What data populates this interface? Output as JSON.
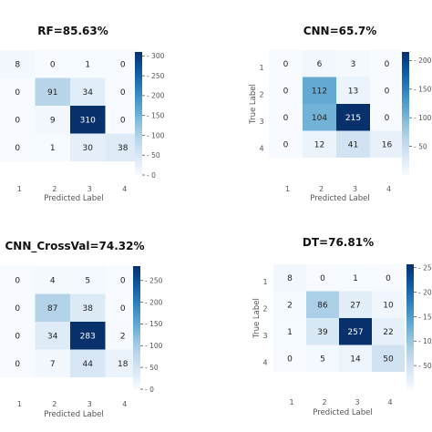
{
  "chart_data": [
    {
      "type": "heatmap",
      "title": "RF=85.63%",
      "xlabel": "Predicted Label",
      "ylabel": "",
      "x_ticks": [
        "1",
        "2",
        "3",
        "4"
      ],
      "y_ticks": [],
      "matrix": [
        [
          8,
          0,
          1,
          0
        ],
        [
          0,
          91,
          34,
          0
        ],
        [
          0,
          9,
          310,
          0
        ],
        [
          0,
          1,
          30,
          38
        ]
      ],
      "colormap": "Blues",
      "vmax": 310,
      "colorbar_ticks": [
        "300",
        "250",
        "200",
        "150",
        "100",
        "50",
        "0"
      ]
    },
    {
      "type": "heatmap",
      "title": "CNN=65.7%",
      "xlabel": "Predicted Label",
      "ylabel": "True Label",
      "x_ticks": [
        "1",
        "2",
        "3",
        "4"
      ],
      "y_ticks": [
        "1",
        "2",
        "3",
        "4"
      ],
      "matrix": [
        [
          0,
          6,
          3,
          0
        ],
        [
          0,
          112,
          13,
          0
        ],
        [
          0,
          104,
          215,
          0
        ],
        [
          0,
          12,
          41,
          16
        ]
      ],
      "colormap": "Blues",
      "vmax": 215,
      "colorbar_ticks": [
        "200",
        "150",
        "100",
        "50"
      ]
    },
    {
      "type": "heatmap",
      "title": "CNN_CrossVal=74.32%",
      "xlabel": "Predicted Label",
      "ylabel": "",
      "x_ticks": [
        "1",
        "2",
        "3",
        "4"
      ],
      "y_ticks": [],
      "matrix": [
        [
          0,
          4,
          5,
          0
        ],
        [
          0,
          87,
          38,
          0
        ],
        [
          0,
          34,
          283,
          2
        ],
        [
          0,
          7,
          44,
          18
        ]
      ],
      "colormap": "Blues",
      "vmax": 283,
      "colorbar_ticks": [
        "250",
        "200",
        "150",
        "100",
        "50",
        "0"
      ]
    },
    {
      "type": "heatmap",
      "title": "DT=76.81%",
      "xlabel": "Predicted Label",
      "ylabel": "True Label",
      "x_ticks": [
        "1",
        "2",
        "3",
        "4"
      ],
      "y_ticks": [
        "1",
        "2",
        "3",
        "4"
      ],
      "matrix": [
        [
          8,
          0,
          1,
          0
        ],
        [
          2,
          86,
          27,
          10
        ],
        [
          1,
          39,
          257,
          22
        ],
        [
          0,
          5,
          14,
          50
        ]
      ],
      "colormap": "Blues",
      "vmax": 257,
      "colorbar_ticks": [
        "250",
        "200",
        "150",
        "100",
        "50"
      ]
    }
  ]
}
